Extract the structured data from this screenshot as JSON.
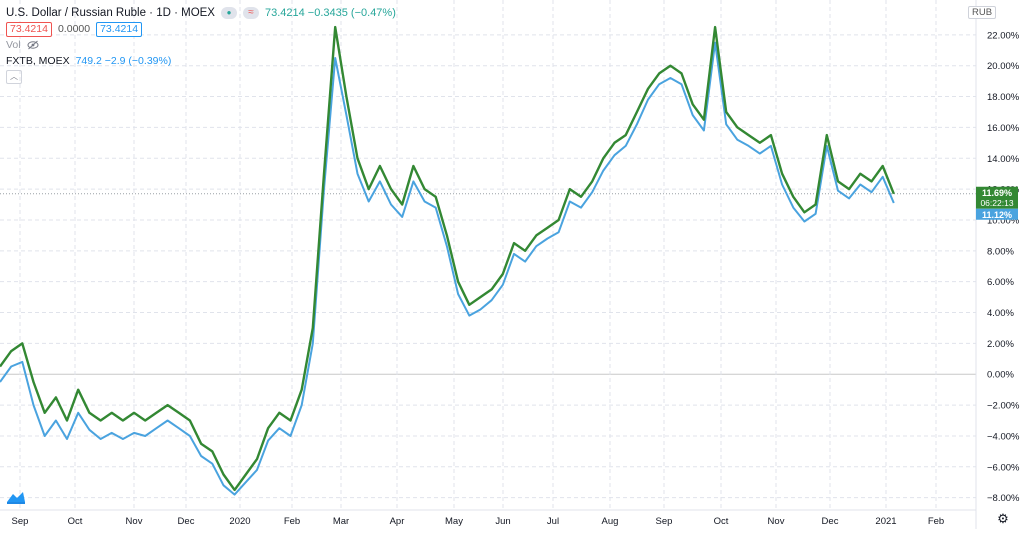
{
  "legend": {
    "symbol_title": "U.S. Dollar / Russian Ruble · 1D · MOEX",
    "quote_text": "73.4214 −0.3435 (−0.47%)",
    "bid": "73.4214",
    "spread": "0.0000",
    "ask": "73.4214",
    "volume_label": "Vol",
    "compare_name": "FXTB, MOEX",
    "compare_value": "749.2 −2.9 (−0.39%)",
    "icons": [
      "dot-icon",
      "wave-icon",
      "eye-slash-icon",
      "chevron-up-icon"
    ]
  },
  "currency_label": "RUB",
  "colors": {
    "main_series": "#338833",
    "compare_series": "#4aa3df",
    "grid": "#e0e3eb",
    "zero_line": "#c8c8c8",
    "axis_text": "#131722"
  },
  "chart_data": {
    "type": "line",
    "x_ticks": [
      "Sep",
      "Oct",
      "Nov",
      "Dec",
      "2020",
      "Feb",
      "Mar",
      "Apr",
      "May",
      "Jun",
      "Jul",
      "Aug",
      "Sep",
      "Oct",
      "Nov",
      "Dec",
      "2021",
      "Feb"
    ],
    "y_ticks": [
      "−8.00%",
      "−6.00%",
      "−4.00%",
      "−2.00%",
      "0.00%",
      "2.00%",
      "4.00%",
      "6.00%",
      "8.00%",
      "10.00%",
      "12.00%",
      "14.00%",
      "16.00%",
      "18.00%",
      "20.00%",
      "22.00%"
    ],
    "y_tick_values": [
      -8,
      -6,
      -4,
      -2,
      0,
      2,
      4,
      6,
      8,
      10,
      12,
      14,
      16,
      18,
      20,
      22
    ],
    "ylim": [
      -8.8,
      24
    ],
    "x_unit": "weeks from start",
    "xlim": [
      0,
      81
    ],
    "last_labels": {
      "main_pct": "11.69%",
      "countdown": "06:22:13",
      "compare_pct": "11.12%"
    },
    "series": [
      {
        "name": "USD/RUB",
        "x": [
          0,
          1,
          2,
          3,
          4,
          5,
          6,
          7,
          8,
          9,
          10,
          11,
          12,
          13,
          14,
          15,
          16,
          17,
          18,
          19,
          20,
          21,
          22,
          23,
          24,
          25,
          26,
          27,
          28,
          29,
          30,
          31,
          32,
          33,
          34,
          35,
          36,
          37,
          38,
          39,
          40,
          41,
          42,
          43,
          44,
          45,
          46,
          47,
          48,
          49,
          50,
          51,
          52,
          53,
          54,
          55,
          56,
          57,
          58,
          59,
          60,
          61,
          62,
          63,
          64,
          65,
          66,
          67,
          68,
          69,
          70,
          71,
          72,
          73,
          74,
          75,
          76,
          77,
          78,
          79,
          80
        ],
        "y": [
          0.5,
          1.5,
          2.0,
          -0.5,
          -2.5,
          -1.5,
          -3.0,
          -1.0,
          -2.5,
          -3.0,
          -2.5,
          -3.0,
          -2.5,
          -3.0,
          -2.5,
          -2.0,
          -2.5,
          -3.0,
          -4.5,
          -5.0,
          -6.5,
          -7.5,
          -6.5,
          -5.5,
          -3.5,
          -2.5,
          -3.0,
          -1.0,
          3.0,
          13.0,
          22.5,
          18.0,
          14.0,
          12.0,
          13.5,
          12.0,
          11.0,
          13.5,
          12.0,
          11.5,
          9.0,
          6.0,
          4.5,
          5.0,
          5.5,
          6.5,
          8.5,
          8.0,
          9.0,
          9.5,
          10.0,
          12.0,
          11.5,
          12.5,
          14.0,
          15.0,
          15.5,
          17.0,
          18.5,
          19.5,
          20.0,
          19.5,
          17.5,
          16.5,
          22.5,
          17.0,
          16.0,
          15.5,
          15.0,
          15.5,
          13.0,
          11.5,
          10.5,
          11.0,
          15.5,
          12.5,
          12.0,
          13.0,
          12.5,
          13.5,
          11.7
        ]
      },
      {
        "name": "FXTB",
        "x": [
          0,
          1,
          2,
          3,
          4,
          5,
          6,
          7,
          8,
          9,
          10,
          11,
          12,
          13,
          14,
          15,
          16,
          17,
          18,
          19,
          20,
          21,
          22,
          23,
          24,
          25,
          26,
          27,
          28,
          29,
          30,
          31,
          32,
          33,
          34,
          35,
          36,
          37,
          38,
          39,
          40,
          41,
          42,
          43,
          44,
          45,
          46,
          47,
          48,
          49,
          50,
          51,
          52,
          53,
          54,
          55,
          56,
          57,
          58,
          59,
          60,
          61,
          62,
          63,
          64,
          65,
          66,
          67,
          68,
          69,
          70,
          71,
          72,
          73,
          74,
          75,
          76,
          77,
          78,
          79,
          80
        ],
        "y": [
          -0.5,
          0.5,
          0.8,
          -2.0,
          -4.0,
          -3.0,
          -4.2,
          -2.5,
          -3.6,
          -4.2,
          -3.8,
          -4.2,
          -3.8,
          -4.0,
          -3.5,
          -3.0,
          -3.5,
          -4.0,
          -5.3,
          -5.8,
          -7.2,
          -7.8,
          -7.0,
          -6.2,
          -4.3,
          -3.5,
          -4.0,
          -2.0,
          2.0,
          12.0,
          20.5,
          16.8,
          13.0,
          11.2,
          12.5,
          11.0,
          10.2,
          12.5,
          11.2,
          10.8,
          8.3,
          5.2,
          3.8,
          4.2,
          4.8,
          5.8,
          7.8,
          7.3,
          8.3,
          8.8,
          9.2,
          11.2,
          10.8,
          11.8,
          13.2,
          14.2,
          14.8,
          16.2,
          17.8,
          18.8,
          19.2,
          18.8,
          16.8,
          15.8,
          21.5,
          16.2,
          15.2,
          14.8,
          14.3,
          14.8,
          12.3,
          10.8,
          9.9,
          10.4,
          14.8,
          11.9,
          11.4,
          12.3,
          11.8,
          12.8,
          11.1
        ]
      }
    ]
  }
}
